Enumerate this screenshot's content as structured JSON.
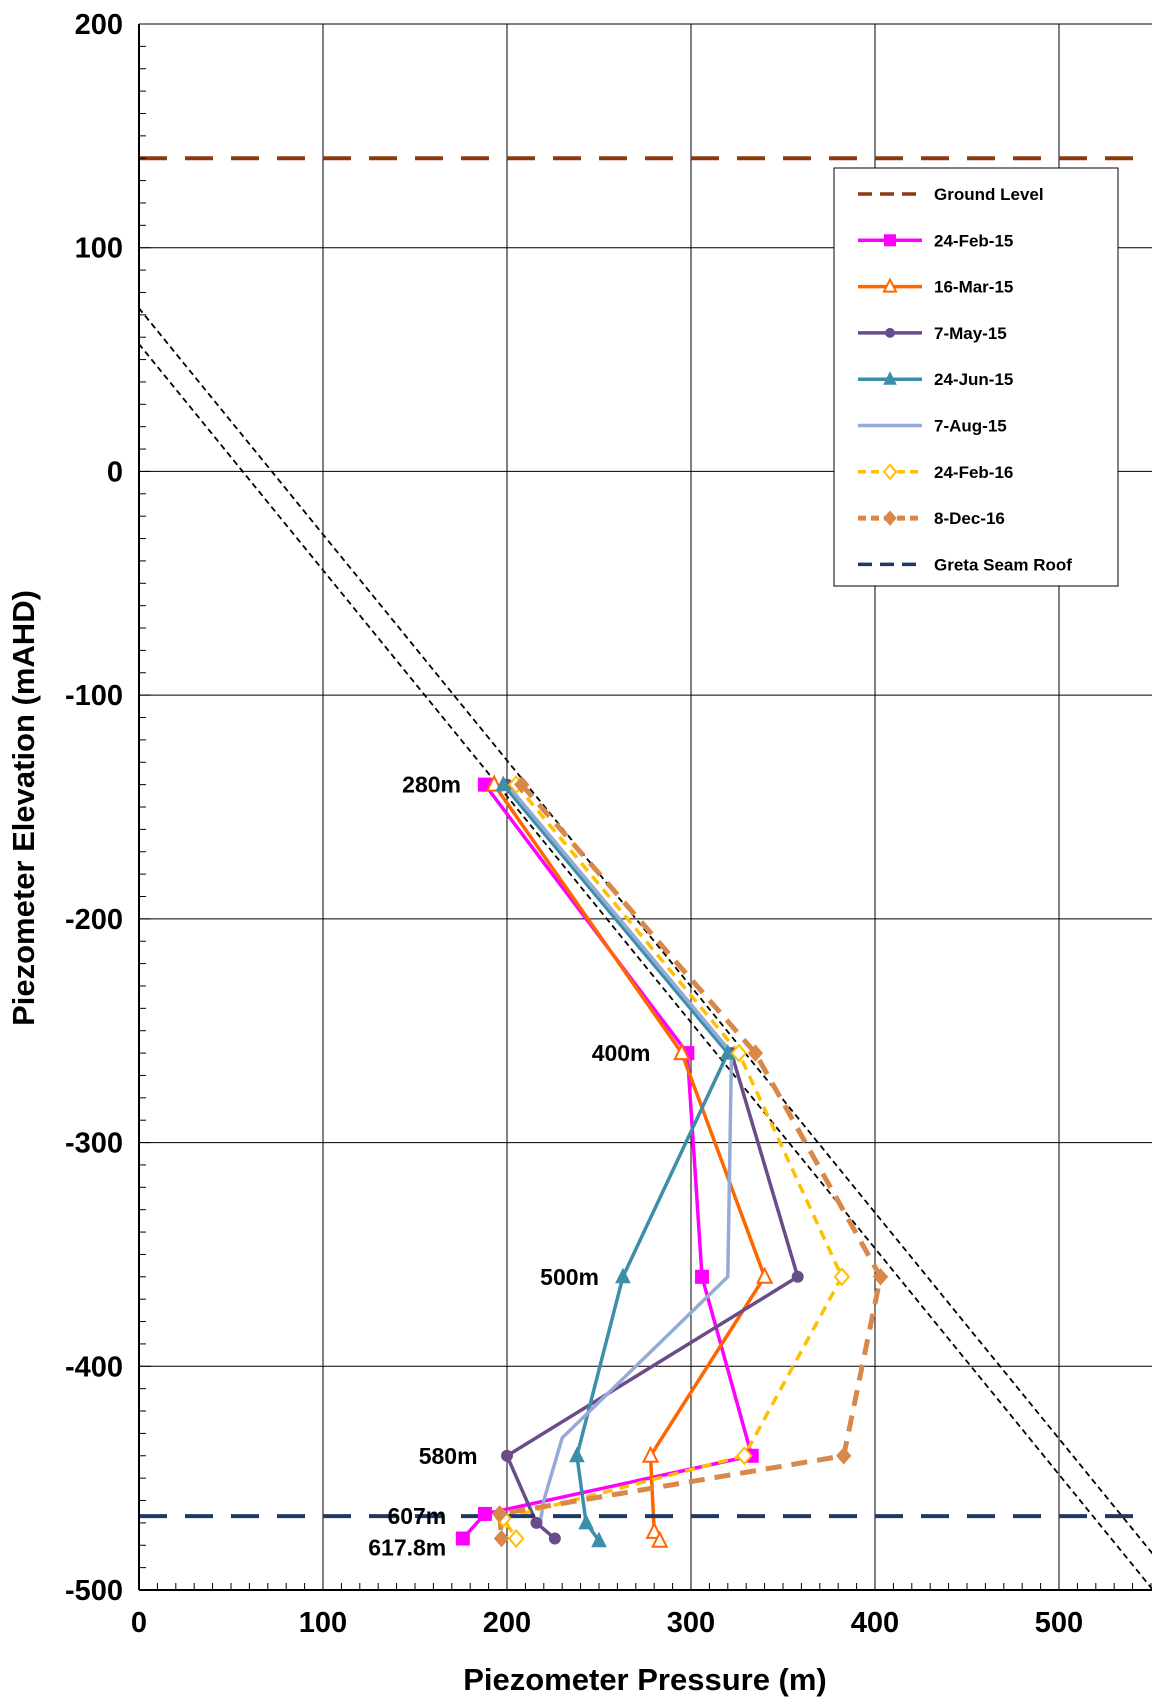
{
  "chart_data": {
    "type": "line",
    "title": "",
    "xlabel": "Piezometer Pressure (m)",
    "ylabel": "Piezometer Elevation (mAHD)",
    "xlim": [
      0,
      550
    ],
    "ylim": [
      -500,
      200
    ],
    "xticks": [
      0,
      100,
      200,
      300,
      400,
      500
    ],
    "yticks": [
      -500,
      -400,
      -300,
      -200,
      -100,
      0,
      100,
      200
    ],
    "grid": true,
    "legend_position": "top-right",
    "depth_labels": [
      {
        "text": "280m",
        "x": 175,
        "y": -140
      },
      {
        "text": "400m",
        "x": 278,
        "y": -260
      },
      {
        "text": "500m",
        "x": 250,
        "y": -360
      },
      {
        "text": "580m",
        "x": 184,
        "y": -440
      },
      {
        "text": "607m",
        "x": 167,
        "y": -467
      },
      {
        "text": "617.8m",
        "x": 167,
        "y": -481
      }
    ],
    "series": [
      {
        "name": "Ground Level",
        "color": "#8B3A0F",
        "style": "dashed",
        "marker": "none",
        "x": [
          0,
          550
        ],
        "y": [
          140,
          140
        ]
      },
      {
        "name": "24-Feb-15",
        "color": "#FF00FF",
        "style": "solid",
        "marker": "square",
        "x": [
          188,
          298,
          306,
          333,
          188,
          176
        ],
        "y": [
          -140,
          -260,
          -360,
          -440,
          -466,
          -477
        ]
      },
      {
        "name": "16-Mar-15",
        "color": "#FF6600",
        "style": "solid",
        "marker": "triangle-open",
        "x": [
          193,
          295,
          340,
          278,
          280,
          283
        ],
        "y": [
          -140,
          -260,
          -360,
          -440,
          -474,
          -478
        ]
      },
      {
        "name": "7-May-15",
        "color": "#6B4C8A",
        "style": "solid",
        "marker": "circle",
        "x": [
          200,
          322,
          358,
          200,
          216,
          226
        ],
        "y": [
          -140,
          -260,
          -360,
          -440,
          -470,
          -477
        ]
      },
      {
        "name": "24-Jun-15",
        "color": "#3B8FA8",
        "style": "solid",
        "marker": "triangle",
        "x": [
          198,
          320,
          263,
          238,
          243,
          250
        ],
        "y": [
          -140,
          -260,
          -360,
          -440,
          -470,
          -478
        ]
      },
      {
        "name": "7-Aug-15",
        "color": "#95ABD6",
        "style": "solid",
        "marker": "none",
        "x": [
          200,
          322,
          320,
          230,
          220,
          218
        ],
        "y": [
          -140,
          -260,
          -360,
          -432,
          -460,
          -470
        ]
      },
      {
        "name": "24-Feb-16",
        "color": "#FFC000",
        "style": "dashed",
        "marker": "diamond-open",
        "x": [
          205,
          326,
          382,
          329,
          198,
          205
        ],
        "y": [
          -140,
          -260,
          -360,
          -440,
          -468,
          -477
        ]
      },
      {
        "name": "8-Dec-16",
        "color": "#D9884A",
        "style": "dashed",
        "marker": "diamond",
        "x": [
          208,
          335,
          403,
          383,
          196,
          197
        ],
        "y": [
          -140,
          -260,
          -360,
          -440,
          -466,
          -477
        ]
      },
      {
        "name": "Greta Seam Roof",
        "color": "#1F3864",
        "style": "dashed",
        "marker": "none",
        "x": [
          0,
          550
        ],
        "y": [
          -467,
          -467
        ]
      }
    ],
    "reference_lines": [
      {
        "color": "#000000",
        "style": "dotted",
        "x": [
          -7,
          559
        ],
        "y": [
          80,
          -492
        ]
      },
      {
        "color": "#000000",
        "style": "dotted",
        "x": [
          -7,
          559
        ],
        "y": [
          64,
          -508
        ]
      }
    ]
  }
}
